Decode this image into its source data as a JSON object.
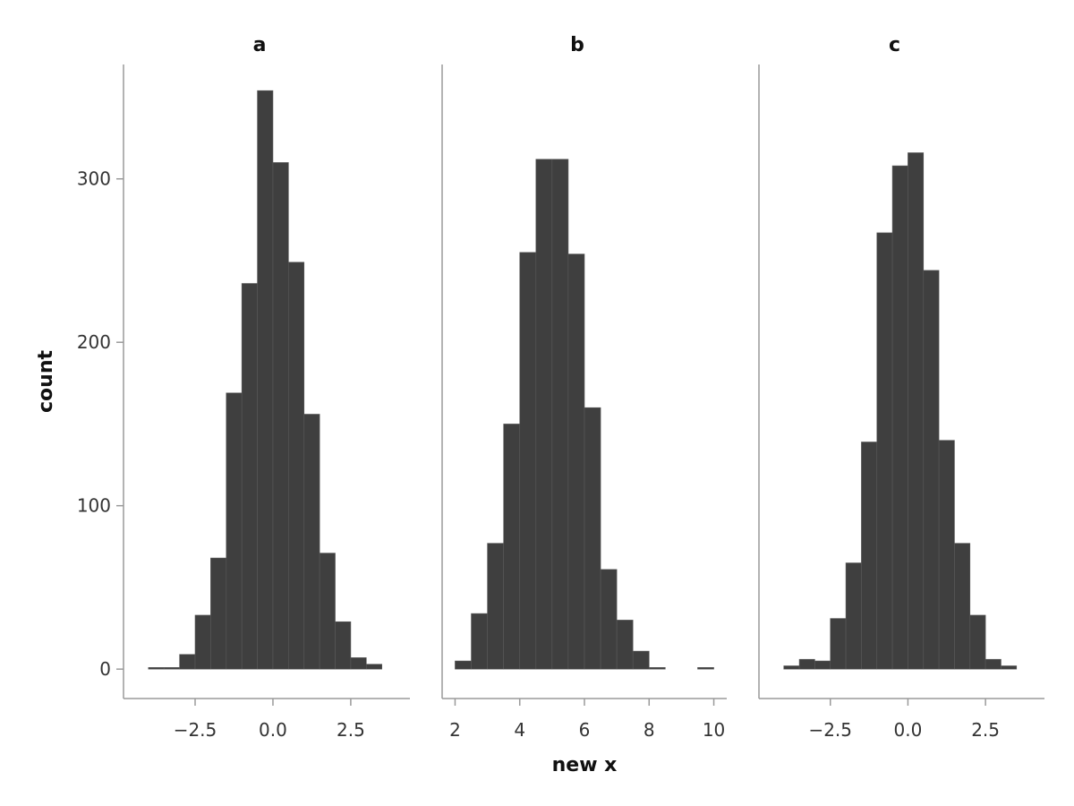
{
  "colors": {
    "bar": "#3f3f3f",
    "axis": "#9a9a9a",
    "background": "#ffffff"
  },
  "chart_data": {
    "type": "bar",
    "xlabel": "new x",
    "ylabel": "count",
    "ylim": [
      -18,
      370
    ],
    "y_ticks": [
      0,
      100,
      200,
      300
    ],
    "y_tick_labels": [
      "0",
      "100",
      "200",
      "300"
    ],
    "grid": false,
    "panels": [
      {
        "title": "a",
        "xlim": [
          -4.8,
          4.4
        ],
        "x_ticks": [
          -2.5,
          0.0,
          2.5
        ],
        "x_tick_labels": [
          "−2.5",
          "0.0",
          "2.5"
        ],
        "bin_edges": [
          -4.0,
          -3.5,
          -3.0,
          -2.5,
          -2.0,
          -1.5,
          -1.0,
          -0.5,
          0.0,
          0.5,
          1.0,
          1.5,
          2.0,
          2.5,
          3.0,
          3.5
        ],
        "values": [
          1,
          1,
          9,
          33,
          68,
          169,
          236,
          354,
          310,
          249,
          156,
          71,
          29,
          7,
          3
        ]
      },
      {
        "title": "b",
        "xlim": [
          1.6,
          10.4
        ],
        "x_ticks": [
          2,
          4,
          6,
          8,
          10
        ],
        "x_tick_labels": [
          "2",
          "4",
          "6",
          "8",
          "10"
        ],
        "bin_edges": [
          2.0,
          2.5,
          3.0,
          3.5,
          4.0,
          4.5,
          5.0,
          5.5,
          6.0,
          6.5,
          7.0,
          7.5,
          8.0,
          8.5,
          9.0,
          9.5,
          10.0
        ],
        "values": [
          5,
          34,
          77,
          150,
          255,
          312,
          312,
          254,
          160,
          61,
          30,
          11,
          1,
          0,
          0,
          1
        ]
      },
      {
        "title": "c",
        "xlim": [
          -4.8,
          4.4
        ],
        "x_ticks": [
          -2.5,
          0.0,
          2.5
        ],
        "x_tick_labels": [
          "−2.5",
          "0.0",
          "2.5"
        ],
        "bin_edges": [
          -4.0,
          -3.5,
          -3.0,
          -2.5,
          -2.0,
          -1.5,
          -1.0,
          -0.5,
          0.0,
          0.5,
          1.0,
          1.5,
          2.0,
          2.5,
          3.0,
          3.5
        ],
        "values": [
          2,
          6,
          5,
          31,
          65,
          139,
          267,
          308,
          316,
          244,
          140,
          77,
          33,
          6,
          2
        ]
      }
    ]
  }
}
